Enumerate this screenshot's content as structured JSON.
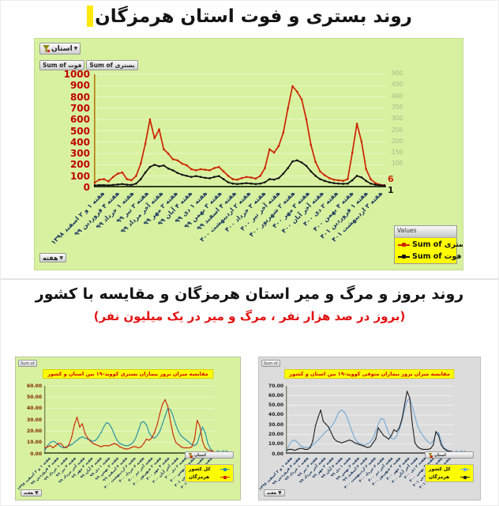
{
  "page": {
    "title": "روند بستری و فوت استان هرمزگان",
    "section2_title": "روند بروز و مرگ و میر استان هرمزگان و مقایسه با کشور",
    "section2_subtitle": "(بروز در صد هزار نفر ، مرگ و میر در یک میلیون نفر)"
  },
  "colors": {
    "panel_green": "#d8f1a0",
    "legend_yellow": "#ffff00",
    "hospitalized_red": "#cc2200",
    "death_black": "#111111",
    "country_teal": "#1f8ea6",
    "country_lightblue": "#74a9d8",
    "axis_label_red": "#c00000",
    "x_label_navy": "#17365d"
  },
  "week_labels": [
    "هفته ۱ و ۲ اسفند ۱۳۹۸",
    "هفته ۴ فروردین ۹۹",
    "هفته ۱ خرداد ۹۹",
    "هفته ۳ تیر ۹۹",
    "هفته آخر مرداد ۹۹",
    "هفته ۲ مهر ۹۹",
    "هفته ۴ آبان ۹۹",
    "هفته ۱ دی ۹۹",
    "هفته ۳ بهمن ۹۹",
    "هفته ۴ اسفند ۹۹",
    "هفته ۲ اردیبهشت ۴۰۰",
    "هفته ۳ خرداد ۴۰۰",
    "هفته آخر تیر ۴۰۰",
    "هفته ۲ شهریور ۴۰۰",
    "هفته ۳ مهر ۴۰۰",
    "هفته آخر آبان ۴۰۰",
    "هفته ۲ دی ۴۰۰",
    "هفته ۴ بهمن ۴۰۰",
    "هفته ۱ فروردین ۴۰۱",
    "هفته ۳ اردیبهشت ۴۰۱"
  ],
  "chart_data": [
    {
      "type": "line",
      "title": "روند بستری و فوت استان هرمزگان",
      "filter_button": "استان",
      "field_buttons": [
        "Sum of فوت",
        "Sum of بستری"
      ],
      "axis_field_button": "هفته",
      "legend": {
        "header": "Values",
        "items": [
          {
            "label": "Sum of بستری",
            "color": "#cc2200"
          },
          {
            "label": "Sum of فوت",
            "color": "#111111"
          }
        ]
      },
      "y_left": {
        "max": 1000,
        "ticks": [
          [
            0,
            "0"
          ],
          [
            100,
            "100"
          ],
          [
            200,
            "200"
          ],
          [
            300,
            "300"
          ],
          [
            400,
            "400"
          ],
          [
            500,
            "500"
          ],
          [
            600,
            "600"
          ],
          [
            700,
            "700"
          ],
          [
            800,
            "800"
          ],
          [
            900,
            "900"
          ],
          [
            1000,
            "1000"
          ]
        ]
      },
      "y_right": {
        "max": 500,
        "ticks": [
          [
            100,
            "100"
          ],
          [
            150,
            "150"
          ],
          [
            200,
            "200"
          ],
          [
            250,
            "250"
          ],
          [
            300,
            "300"
          ],
          [
            350,
            "350"
          ],
          [
            400,
            "400"
          ],
          [
            450,
            "450"
          ],
          [
            500,
            "500"
          ]
        ]
      },
      "series": [
        {
          "name": "Sum of بستری",
          "color": "#cc2200",
          "axis": "left",
          "end_label": "6",
          "values": [
            30,
            55,
            60,
            40,
            80,
            110,
            120,
            60,
            50,
            90,
            200,
            380,
            600,
            430,
            510,
            330,
            290,
            240,
            230,
            200,
            185,
            150,
            140,
            150,
            145,
            140,
            160,
            170,
            130,
            90,
            60,
            55,
            70,
            80,
            75,
            65,
            90,
            160,
            330,
            300,
            360,
            480,
            700,
            900,
            850,
            780,
            600,
            370,
            215,
            130,
            95,
            70,
            55,
            50,
            45,
            60,
            300,
            560,
            400,
            150,
            60,
            25,
            10,
            6
          ]
        },
        {
          "name": "Sum of فوت",
          "color": "#111111",
          "axis": "right",
          "end_label": "1",
          "values": [
            2,
            3,
            3,
            2,
            4,
            6,
            8,
            5,
            4,
            10,
            30,
            60,
            85,
            95,
            88,
            92,
            78,
            70,
            58,
            50,
            45,
            40,
            44,
            40,
            36,
            34,
            40,
            44,
            30,
            16,
            10,
            8,
            10,
            12,
            10,
            8,
            10,
            16,
            30,
            28,
            35,
            55,
            80,
            110,
            115,
            105,
            90,
            65,
            45,
            30,
            22,
            16,
            12,
            10,
            9,
            10,
            25,
            45,
            38,
            22,
            10,
            5,
            2,
            1
          ]
        }
      ]
    },
    {
      "type": "line",
      "title": "مقایسه میزان بروز بیماران بستری کووید-۱۹ بین استان و کشور",
      "corner_button": "Sum of",
      "filter_button": "استان",
      "axis_field_button": "هفته",
      "legend": {
        "items": [
          {
            "label": "کل کشور",
            "color": "#1f8ea6"
          },
          {
            "label": "هرمزگان",
            "color": "#cc2200"
          }
        ]
      },
      "y_left": {
        "max": 60,
        "ticks": [
          [
            0,
            "0.00"
          ],
          [
            10,
            "10.00"
          ],
          [
            20,
            "20.00"
          ],
          [
            30,
            "30.00"
          ],
          [
            40,
            "40.00"
          ],
          [
            50,
            "50.00"
          ],
          [
            60,
            "60.00"
          ]
        ]
      },
      "series": [
        {
          "name": "کل کشور",
          "color": "#1f8ea6",
          "axis": "left",
          "end_label": "0.63",
          "values": [
            2,
            6,
            9,
            10,
            9,
            7,
            5,
            4,
            5,
            6,
            7,
            9,
            11,
            13,
            14,
            13,
            12,
            11,
            10,
            11,
            14,
            18,
            23,
            27,
            26,
            22,
            16,
            11,
            8,
            7,
            6,
            6,
            7,
            9,
            13,
            20,
            27,
            28,
            25,
            18,
            14,
            13,
            15,
            19,
            26,
            33,
            40,
            39,
            33,
            25,
            19,
            15,
            13,
            11,
            9,
            7,
            6,
            8,
            16,
            23,
            18,
            8,
            3,
            0.63
          ]
        },
        {
          "name": "هرمزگان",
          "color": "#cc2200",
          "axis": "left",
          "values": [
            4,
            5,
            6,
            4,
            6,
            8,
            8,
            5,
            4,
            7,
            14,
            25,
            32,
            23,
            26,
            17,
            13,
            10,
            8,
            7,
            6,
            5,
            6,
            6,
            6,
            7,
            8,
            7,
            5,
            4,
            3,
            3,
            4,
            5,
            5,
            4,
            5,
            8,
            12,
            11,
            13,
            18,
            25,
            35,
            44,
            48,
            42,
            28,
            16,
            9,
            7,
            5,
            4,
            4,
            4,
            5,
            12,
            29,
            24,
            10,
            4,
            2,
            1.5,
            1
          ]
        }
      ]
    },
    {
      "type": "line",
      "title": "مقایسه میزان بروز بیماران متوفی کووید-۱۹ بین استان و کشور",
      "corner_button": "Sum of",
      "filter_button": "استان",
      "axis_field_button": "هفته",
      "legend": {
        "items": [
          {
            "label": "کل کشور",
            "color": "#74a9d8"
          },
          {
            "label": "هرمزگان",
            "color": "#222222"
          }
        ]
      },
      "y_left": {
        "max": 70,
        "ticks": [
          [
            0,
            "0.00"
          ],
          [
            10,
            "10.00"
          ],
          [
            20,
            "20.00"
          ],
          [
            30,
            "30.00"
          ],
          [
            40,
            "40.00"
          ],
          [
            50,
            "50.00"
          ],
          [
            60,
            "60.00"
          ],
          [
            70,
            "70.00"
          ]
        ]
      },
      "series": [
        {
          "name": "کل کشور",
          "color": "#74a9d8",
          "axis": "left",
          "end_label": "0.91",
          "values": [
            2,
            8,
            12,
            13,
            11,
            8,
            6,
            5,
            5,
            6,
            8,
            10,
            13,
            16,
            19,
            22,
            24,
            27,
            31,
            37,
            43,
            45,
            43,
            38,
            30,
            22,
            15,
            11,
            9,
            8,
            8,
            9,
            11,
            15,
            22,
            30,
            36,
            35,
            28,
            20,
            15,
            14,
            17,
            24,
            33,
            45,
            55,
            57,
            49,
            38,
            28,
            22,
            18,
            14,
            11,
            9,
            12,
            20,
            21,
            12,
            5,
            3,
            1.5,
            0.91
          ]
        },
        {
          "name": "هرمزگان",
          "color": "#222222",
          "axis": "left",
          "values": [
            2,
            3,
            3,
            2,
            3,
            4,
            4,
            3,
            3,
            5,
            12,
            28,
            37,
            45,
            33,
            30,
            27,
            21,
            15,
            12,
            11,
            10,
            11,
            12,
            13,
            12,
            10,
            9,
            8,
            7,
            6,
            5,
            6,
            10,
            14,
            26,
            22,
            18,
            16,
            14,
            18,
            24,
            22,
            26,
            35,
            50,
            65,
            58,
            30,
            10,
            6,
            4,
            3,
            3,
            3,
            4,
            8,
            22,
            18,
            8,
            4,
            2,
            1,
            1
          ]
        }
      ]
    }
  ]
}
